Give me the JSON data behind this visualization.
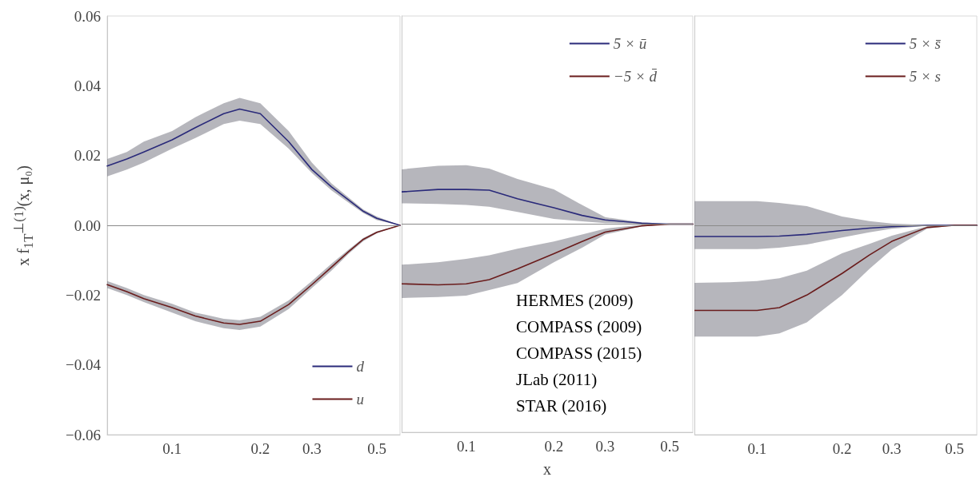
{
  "chart_data": [
    {
      "type": "line",
      "ylabel": "x f$_{1T}$$^{⊥(1)}$(x, μ₀)",
      "log": "x",
      "xlim": [
        0.06,
        0.6
      ],
      "xticks": [
        0.1,
        0.2,
        0.3,
        0.5
      ],
      "ylim": [
        -0.06,
        0.06
      ],
      "yticks": [
        {
          "value": -0.06,
          "label": "−0.06"
        },
        {
          "value": -0.04,
          "label": "−0.04"
        },
        {
          "value": -0.02,
          "label": "−0.02"
        },
        {
          "value": 0,
          "label": "0.00"
        },
        {
          "value": 0.02,
          "label": "0.02"
        },
        {
          "value": 0.04,
          "label": "0.04"
        },
        {
          "value": 0.06,
          "label": "0.06"
        }
      ],
      "grid": false,
      "legend": "bottom right",
      "marker": "none",
      "line_style": "solid",
      "x": [
        0.06,
        0.07,
        0.08,
        0.1,
        0.12,
        0.15,
        0.17,
        0.2,
        0.25,
        0.3,
        0.35,
        0.4,
        0.45,
        0.5,
        0.6
      ],
      "ref_lines": [
        {
          "axis": "y",
          "value": 0,
          "color": "#8a8a8a"
        }
      ],
      "series": [
        {
          "name": "d",
          "color": "#2a2a7a",
          "values": [
            0.017,
            0.019,
            0.021,
            0.0245,
            0.028,
            0.032,
            0.0333,
            0.032,
            0.024,
            0.016,
            0.011,
            0.0073,
            0.004,
            0.002,
            0
          ],
          "lower": [
            0.014,
            0.016,
            0.018,
            0.022,
            0.025,
            0.029,
            0.03,
            0.029,
            0.022,
            0.015,
            0.01,
            0.0065,
            0.0035,
            0.0015,
            0
          ],
          "upper": [
            0.019,
            0.021,
            0.024,
            0.027,
            0.031,
            0.035,
            0.0365,
            0.035,
            0.027,
            0.018,
            0.012,
            0.008,
            0.0045,
            0.0025,
            0
          ]
        },
        {
          "name": "u",
          "color": "#6a1c1c",
          "values": [
            -0.017,
            -0.019,
            -0.021,
            -0.0236,
            -0.026,
            -0.028,
            -0.0284,
            -0.0275,
            -0.0227,
            -0.017,
            -0.012,
            -0.0076,
            -0.004,
            -0.002,
            0
          ],
          "lower": [
            -0.018,
            -0.02,
            -0.022,
            -0.025,
            -0.0275,
            -0.0295,
            -0.03,
            -0.029,
            -0.024,
            -0.018,
            -0.013,
            -0.0082,
            -0.0045,
            -0.0023,
            0
          ],
          "upper": [
            -0.016,
            -0.018,
            -0.02,
            -0.0225,
            -0.025,
            -0.0268,
            -0.0272,
            -0.0262,
            -0.0215,
            -0.016,
            -0.011,
            -0.007,
            -0.0036,
            -0.0017,
            0
          ]
        }
      ]
    },
    {
      "type": "line",
      "xlabel": "x",
      "log": "x",
      "xlim": [
        0.06,
        0.6
      ],
      "xticks": [
        0.1,
        0.2,
        0.3,
        0.5
      ],
      "ylim": [
        -0.06,
        0.06
      ],
      "tick_labels": "x",
      "grid": false,
      "legend": "top right",
      "marker": "none",
      "line_style": "solid",
      "x": [
        0.06,
        0.08,
        0.1,
        0.12,
        0.15,
        0.2,
        0.25,
        0.3,
        0.4,
        0.5,
        0.6
      ],
      "ref_lines": [
        {
          "axis": "y",
          "value": 0,
          "color": "#8a8a8a"
        }
      ],
      "annotations": [
        "HERMES (2009)",
        "COMPASS (2009)",
        "COMPASS (2015)",
        "JLab (2011)",
        "STAR (2016)"
      ],
      "series": [
        {
          "name": "5 × ū",
          "color": "#2a2a7a",
          "values": [
            0.0093,
            0.01,
            0.01,
            0.0098,
            0.0073,
            0.0047,
            0.0025,
            0.0012,
            0.0003,
            0,
            0
          ],
          "lower": [
            0.006,
            0.0058,
            0.0055,
            0.005,
            0.0035,
            0.0015,
            0.0008,
            0.0003,
            0.0001,
            0,
            0
          ],
          "upper": [
            0.0158,
            0.0168,
            0.017,
            0.016,
            0.013,
            0.01,
            0.0055,
            0.002,
            0.0005,
            0,
            0
          ]
        },
        {
          "name": "−5 × d̄",
          "color": "#6a1c1c",
          "values": [
            -0.0172,
            -0.0175,
            -0.0172,
            -0.016,
            -0.0129,
            -0.0085,
            -0.005,
            -0.0023,
            -0.0005,
            0,
            0
          ],
          "lower": [
            -0.0213,
            -0.021,
            -0.0206,
            -0.019,
            -0.017,
            -0.011,
            -0.0068,
            -0.003,
            -0.0007,
            0,
            0
          ],
          "upper": [
            -0.0117,
            -0.011,
            -0.01,
            -0.009,
            -0.0071,
            -0.005,
            -0.003,
            -0.0013,
            -0.0002,
            0,
            0
          ]
        }
      ]
    },
    {
      "type": "line",
      "log": "x",
      "xlim": [
        0.06,
        0.6
      ],
      "xticks": [
        0.1,
        0.2,
        0.3,
        0.5
      ],
      "ylim": [
        -0.06,
        0.06
      ],
      "tick_labels": "x",
      "grid": false,
      "legend": "top right",
      "marker": "none",
      "line_style": "solid",
      "x": [
        0.06,
        0.08,
        0.1,
        0.12,
        0.15,
        0.2,
        0.25,
        0.3,
        0.4,
        0.5,
        0.6
      ],
      "ref_lines": [
        {
          "axis": "y",
          "value": 0,
          "color": "#8a8a8a"
        }
      ],
      "series": [
        {
          "name": "5 × s̄",
          "color": "#2a2a7a",
          "values": [
            -0.0032,
            -0.0032,
            -0.0032,
            -0.0031,
            -0.0026,
            -0.0015,
            -0.0008,
            -0.0004,
            0,
            0,
            0
          ],
          "lower": [
            -0.0068,
            -0.0068,
            -0.0068,
            -0.0064,
            -0.0055,
            -0.0035,
            -0.002,
            -0.001,
            -0.0002,
            0,
            0
          ],
          "upper": [
            0.0069,
            0.0069,
            0.0069,
            0.0064,
            0.0055,
            0.0025,
            0.0012,
            0.0005,
            0.0001,
            0,
            0
          ]
        },
        {
          "name": "5 × s",
          "color": "#6a1c1c",
          "values": [
            -0.0244,
            -0.0244,
            -0.0244,
            -0.0236,
            -0.02,
            -0.0138,
            -0.0085,
            -0.0046,
            -0.0006,
            0,
            0
          ],
          "lower": [
            -0.0319,
            -0.0319,
            -0.0319,
            -0.031,
            -0.0278,
            -0.02,
            -0.0125,
            -0.0069,
            -0.001,
            0,
            0
          ],
          "upper": [
            -0.0165,
            -0.0163,
            -0.016,
            -0.0152,
            -0.013,
            -0.008,
            -0.0053,
            -0.003,
            -0.0003,
            0,
            0
          ]
        }
      ]
    }
  ]
}
